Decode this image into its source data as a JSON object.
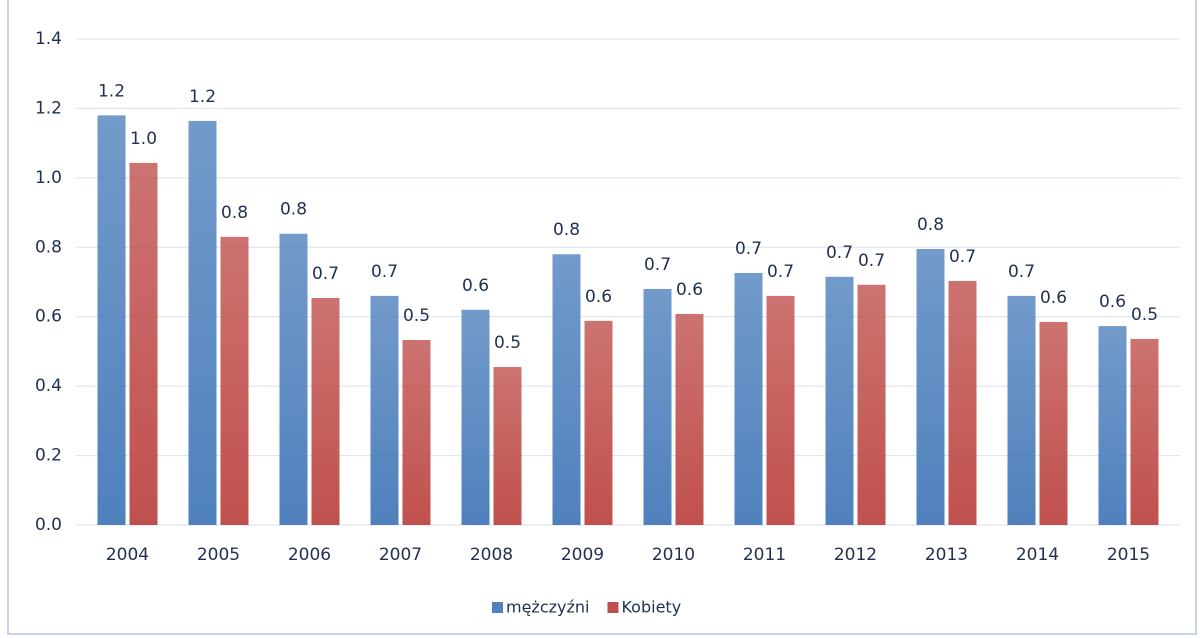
{
  "chart_data": {
    "type": "bar",
    "categories": [
      "2004",
      "2005",
      "2006",
      "2007",
      "2008",
      "2009",
      "2010",
      "2011",
      "2012",
      "2013",
      "2014",
      "2015"
    ],
    "series": [
      {
        "name": "mężczyźni",
        "color": "#4f81bd",
        "values": [
          1.18,
          1.164,
          0.839,
          0.66,
          0.62,
          0.78,
          0.68,
          0.726,
          0.715,
          0.795,
          0.66,
          0.573
        ],
        "value_labels": [
          "1.2",
          "1.2",
          "0.8",
          "0.7",
          "0.6",
          "0.8",
          "0.7",
          "0.7",
          "0.7",
          "0.8",
          "0.7",
          "0.6"
        ]
      },
      {
        "name": "Kobiety",
        "color": "#c0504d",
        "values": [
          1.043,
          0.83,
          0.654,
          0.533,
          0.455,
          0.588,
          0.608,
          0.66,
          0.692,
          0.703,
          0.585,
          0.536
        ],
        "value_labels": [
          "1.0",
          "0.8",
          "0.7",
          "0.5",
          "0.5",
          "0.6",
          "0.6",
          "0.7",
          "0.7",
          "0.7",
          "0.6",
          "0.5"
        ]
      }
    ],
    "ylim": [
      0,
      1.4
    ],
    "yticks": [
      {
        "value": 0,
        "label": "0.0"
      },
      0.2,
      0.4,
      0.6,
      0.8,
      {
        "value": 1,
        "label": "1.0"
      },
      1.2,
      1.4
    ],
    "grid": true,
    "legend": "bottom"
  }
}
